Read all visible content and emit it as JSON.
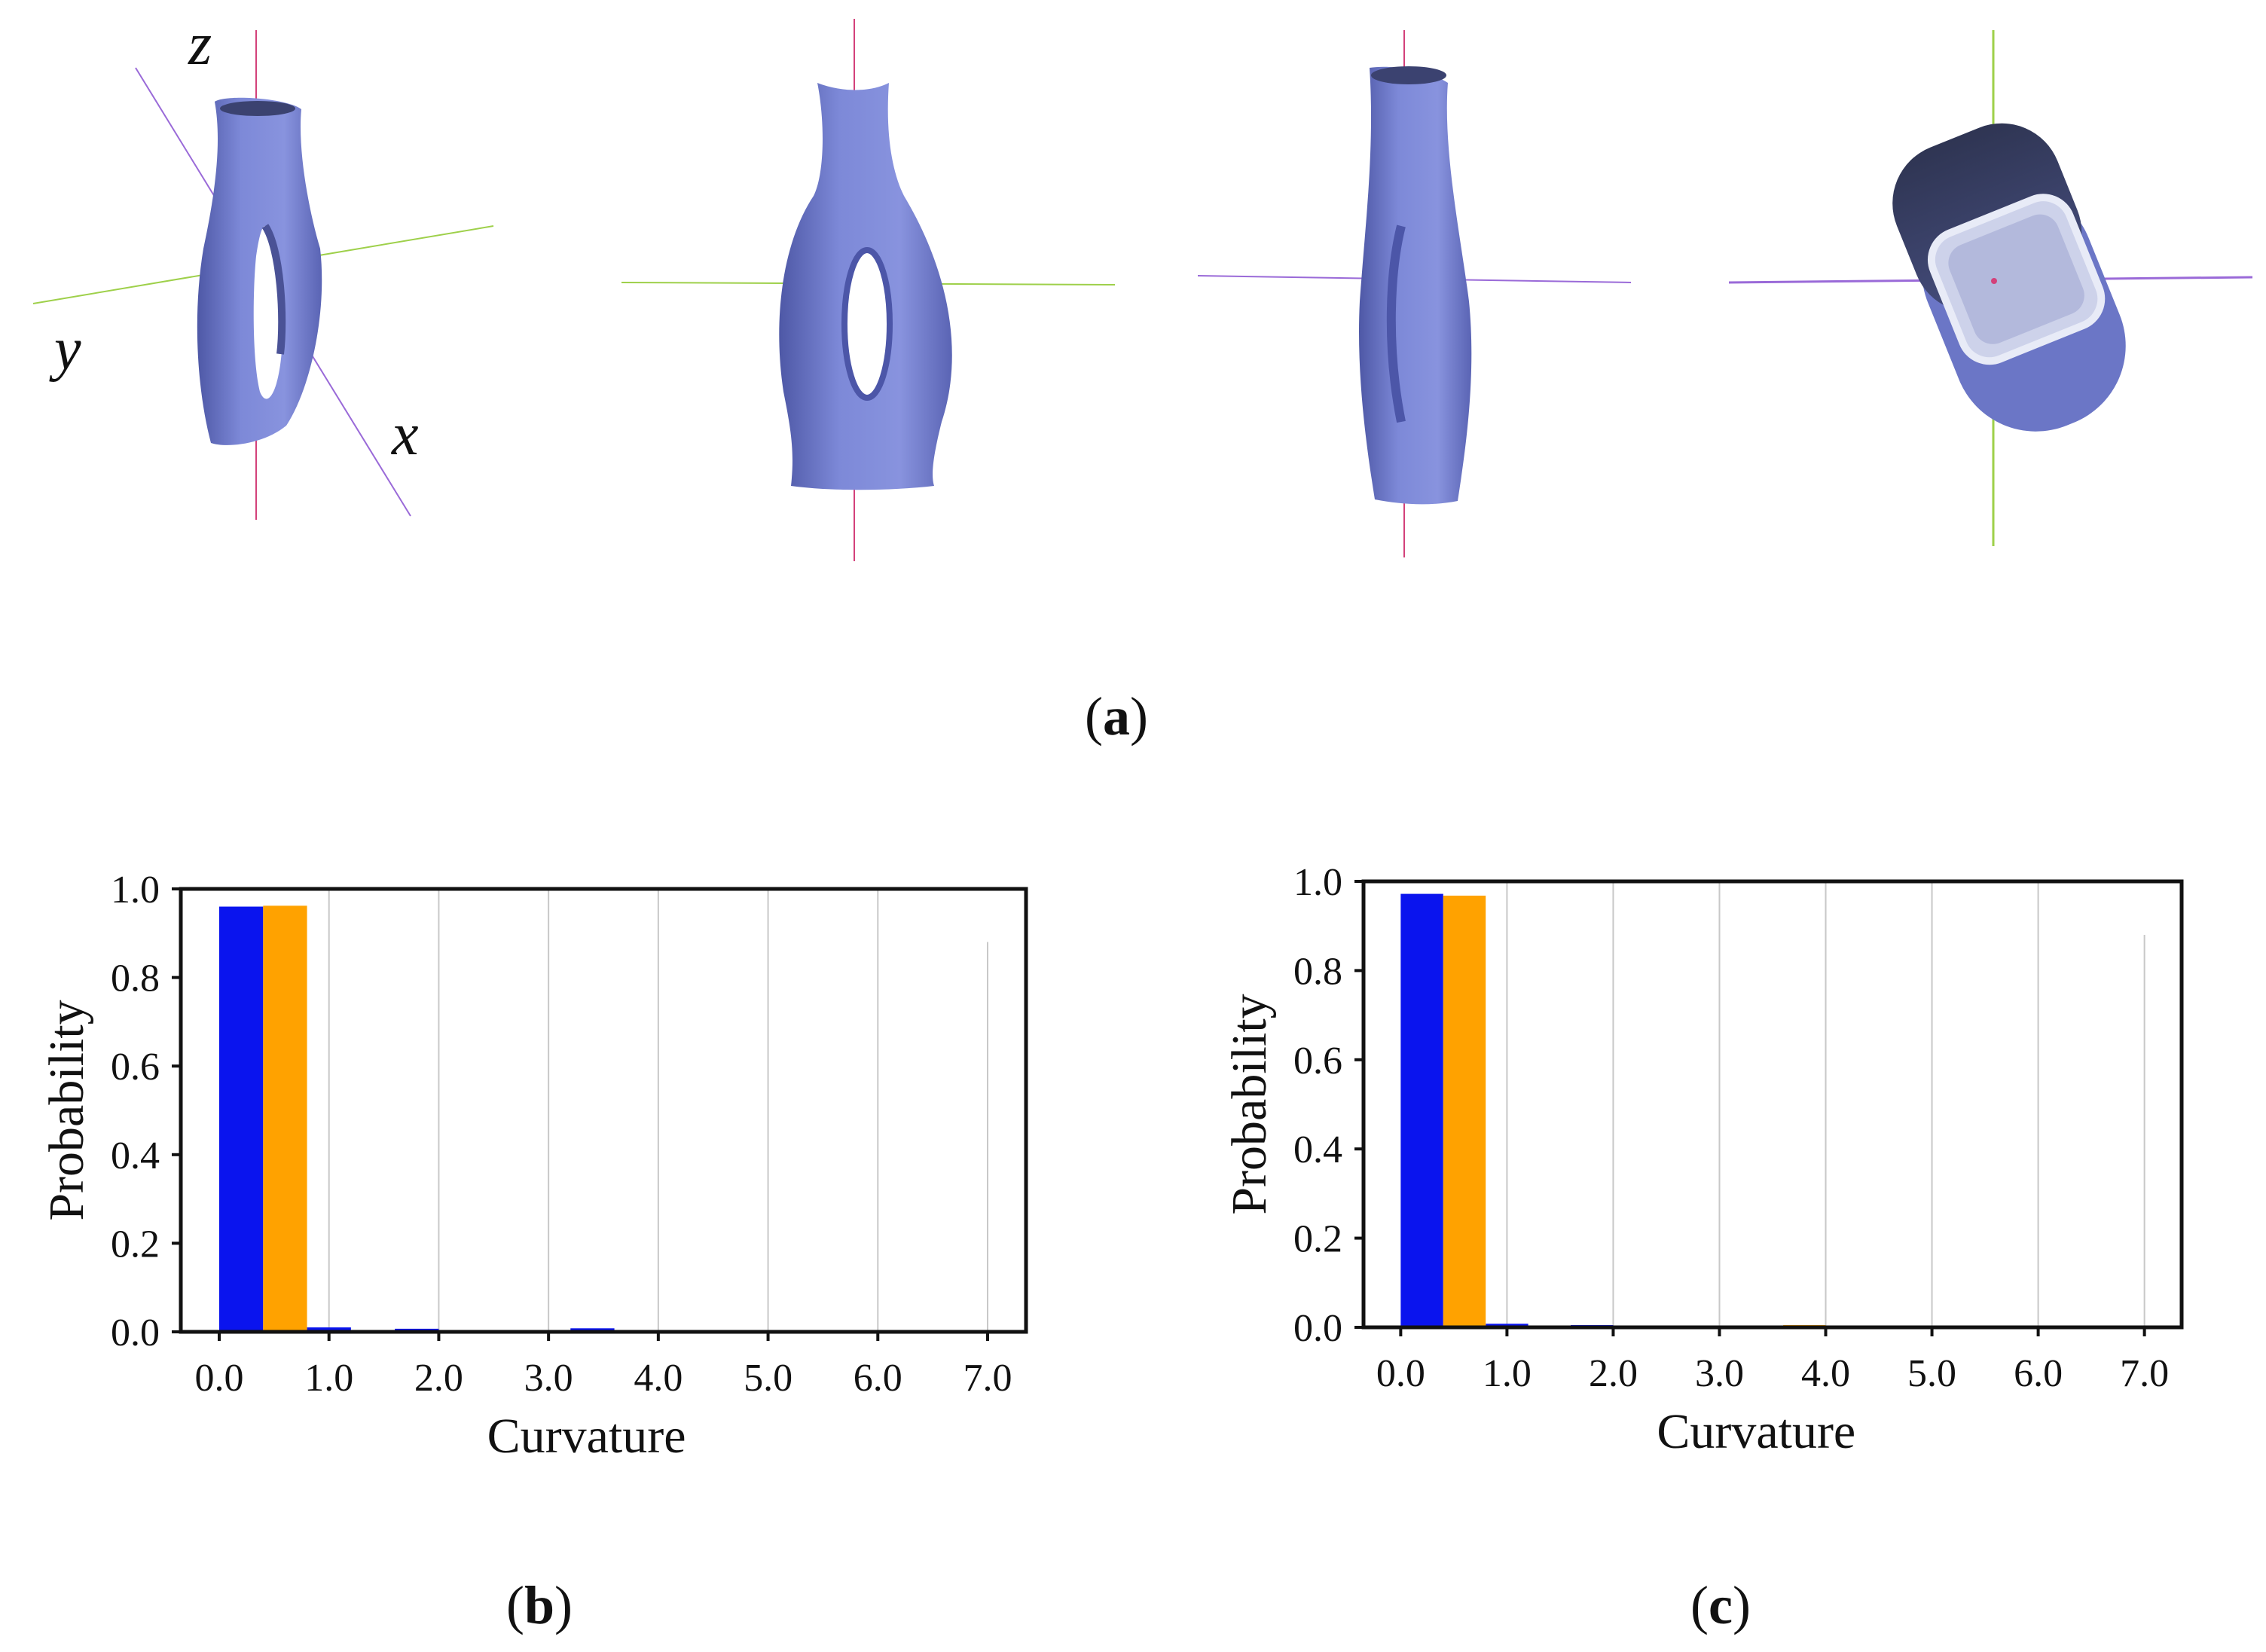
{
  "figure": {
    "panel_a": {
      "caption_letter": "a",
      "axis_labels": {
        "z": "z",
        "y": "y",
        "x": "x"
      },
      "colors": {
        "object": "#7b86d6",
        "object_shade": "#4c56a8",
        "z_axis": "#d3417a",
        "y_axis": "#9ed04a",
        "x_axis": "#9a6ad8"
      }
    },
    "panel_b": {
      "caption_letter": "b"
    },
    "panel_c": {
      "caption_letter": "c"
    }
  },
  "chart_data": [
    {
      "type": "bar",
      "panel": "b",
      "xlabel": "Curvature",
      "ylabel": "Probability",
      "x_ticks": [
        "0.0",
        "1.0",
        "2.0",
        "3.0",
        "4.0",
        "5.0",
        "6.0",
        "7.0"
      ],
      "y_ticks": [
        "0.0",
        "0.2",
        "0.4",
        "0.6",
        "0.8",
        "1.0"
      ],
      "xlim": [
        -0.35,
        7.35
      ],
      "ylim": [
        0,
        1.0
      ],
      "bin_width": 0.4,
      "grid": "vertical",
      "colors": [
        "#0a14ee",
        "#ffa200"
      ],
      "series": [
        {
          "bins": [
            0.0,
            0.8,
            1.6,
            3.2
          ],
          "values": [
            0.96,
            0.01,
            0.007,
            0.008
          ]
        },
        {
          "bins": [
            0.4,
            1.2,
            2.0,
            3.6
          ],
          "values": [
            0.962,
            0.004,
            0.003,
            0.004
          ]
        }
      ]
    },
    {
      "type": "bar",
      "panel": "c",
      "xlabel": "Curvature",
      "ylabel": "Probability",
      "x_ticks": [
        "0.0",
        "1.0",
        "2.0",
        "3.0",
        "4.0",
        "5.0",
        "6.0",
        "7.0"
      ],
      "y_ticks": [
        "0.0",
        "0.2",
        "0.4",
        "0.6",
        "0.8",
        "1.0"
      ],
      "xlim": [
        -0.35,
        7.35
      ],
      "ylim": [
        0,
        1.0
      ],
      "bin_width": 0.4,
      "grid": "vertical",
      "colors": [
        "#0a14ee",
        "#ffa200"
      ],
      "series": [
        {
          "bins": [
            0.0,
            0.8,
            1.6,
            3.2
          ],
          "values": [
            0.972,
            0.008,
            0.005,
            0.004
          ]
        },
        {
          "bins": [
            0.4,
            1.2,
            2.0,
            3.6
          ],
          "values": [
            0.968,
            0.004,
            0.003,
            0.005
          ]
        }
      ]
    }
  ]
}
